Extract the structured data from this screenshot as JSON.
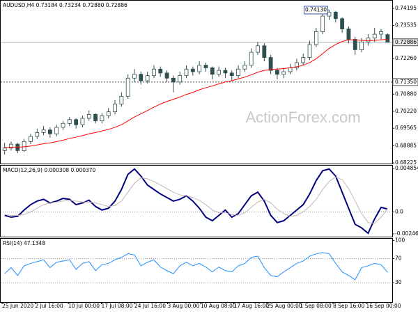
{
  "chart_data": [
    {
      "type": "candlestick",
      "title": "AUDUSD,H4  0.73184 0.73234 0.72880 0.72886",
      "watermark": "ActionForex.com",
      "candle_color": "#2f4f4f",
      "ohlc": [
        [
          0.687,
          0.69,
          0.6855,
          0.688
        ],
        [
          0.688,
          0.6905,
          0.687,
          0.6895
        ],
        [
          0.6895,
          0.69,
          0.686,
          0.687
        ],
        [
          0.687,
          0.6915,
          0.6865,
          0.6905
        ],
        [
          0.6905,
          0.6935,
          0.6895,
          0.6925
        ],
        [
          0.6925,
          0.6955,
          0.6915,
          0.694
        ],
        [
          0.694,
          0.6965,
          0.693,
          0.695
        ],
        [
          0.695,
          0.696,
          0.692,
          0.6935
        ],
        [
          0.6935,
          0.697,
          0.6925,
          0.696
        ],
        [
          0.696,
          0.6985,
          0.695,
          0.6975
        ],
        [
          0.6975,
          0.7,
          0.6965,
          0.699
        ],
        [
          0.699,
          0.6995,
          0.6955,
          0.697
        ],
        [
          0.697,
          0.7005,
          0.696,
          0.6995
        ],
        [
          0.6995,
          0.7025,
          0.6985,
          0.701
        ],
        [
          0.701,
          0.7015,
          0.6975,
          0.6985
        ],
        [
          0.6985,
          0.7015,
          0.6975,
          0.7005
        ],
        [
          0.7005,
          0.7035,
          0.6995,
          0.702
        ],
        [
          0.702,
          0.7065,
          0.701,
          0.705
        ],
        [
          0.705,
          0.7095,
          0.704,
          0.708
        ],
        [
          0.708,
          0.7165,
          0.707,
          0.715
        ],
        [
          0.715,
          0.7185,
          0.7135,
          0.7165
        ],
        [
          0.7165,
          0.7175,
          0.7125,
          0.714
        ],
        [
          0.714,
          0.7175,
          0.713,
          0.716
        ],
        [
          0.716,
          0.72,
          0.715,
          0.7185
        ],
        [
          0.7185,
          0.7195,
          0.7155,
          0.717
        ],
        [
          0.717,
          0.718,
          0.7135,
          0.715
        ],
        [
          0.715,
          0.716,
          0.7095,
          0.7135
        ],
        [
          0.7135,
          0.7175,
          0.7125,
          0.716
        ],
        [
          0.716,
          0.72,
          0.715,
          0.7185
        ],
        [
          0.7185,
          0.7195,
          0.716,
          0.7175
        ],
        [
          0.7175,
          0.7215,
          0.7165,
          0.72
        ],
        [
          0.72,
          0.721,
          0.7175,
          0.719
        ],
        [
          0.719,
          0.7195,
          0.7145,
          0.7165
        ],
        [
          0.7165,
          0.7195,
          0.7155,
          0.718
        ],
        [
          0.718,
          0.719,
          0.715,
          0.717
        ],
        [
          0.717,
          0.718,
          0.714,
          0.716
        ],
        [
          0.716,
          0.72,
          0.715,
          0.7185
        ],
        [
          0.7185,
          0.7215,
          0.7175,
          0.72
        ],
        [
          0.72,
          0.7265,
          0.719,
          0.725
        ],
        [
          0.725,
          0.729,
          0.724,
          0.7275
        ],
        [
          0.7275,
          0.7285,
          0.7215,
          0.723
        ],
        [
          0.723,
          0.724,
          0.7165,
          0.718
        ],
        [
          0.718,
          0.719,
          0.7145,
          0.7165
        ],
        [
          0.7165,
          0.719,
          0.715,
          0.7175
        ],
        [
          0.7175,
          0.7205,
          0.7165,
          0.719
        ],
        [
          0.719,
          0.7225,
          0.718,
          0.721
        ],
        [
          0.721,
          0.7245,
          0.72,
          0.723
        ],
        [
          0.723,
          0.7295,
          0.722,
          0.728
        ],
        [
          0.728,
          0.7345,
          0.727,
          0.733
        ],
        [
          0.733,
          0.7405,
          0.732,
          0.739
        ],
        [
          0.739,
          0.7413,
          0.7375,
          0.7405
        ],
        [
          0.7405,
          0.741,
          0.7365,
          0.738
        ],
        [
          0.738,
          0.7385,
          0.7325,
          0.734
        ],
        [
          0.734,
          0.735,
          0.7285,
          0.73
        ],
        [
          0.73,
          0.731,
          0.724,
          0.726
        ],
        [
          0.726,
          0.7305,
          0.725,
          0.729
        ],
        [
          0.729,
          0.732,
          0.7275,
          0.7305
        ],
        [
          0.7305,
          0.7345,
          0.729,
          0.732
        ],
        [
          0.732,
          0.734,
          0.73,
          0.733
        ],
        [
          0.73184,
          0.73234,
          0.7288,
          0.72886
        ]
      ],
      "series": [
        {
          "color": "#ff0000",
          "values": [
            0.6882,
            0.6883,
            0.6883,
            0.6885,
            0.6888,
            0.6892,
            0.6897,
            0.69,
            0.6905,
            0.691,
            0.6917,
            0.6922,
            0.6928,
            0.6935,
            0.694,
            0.6946,
            0.6952,
            0.696,
            0.697,
            0.6985,
            0.7,
            0.7012,
            0.7025,
            0.7038,
            0.705,
            0.706,
            0.7068,
            0.7077,
            0.7087,
            0.7095,
            0.7105,
            0.7113,
            0.712,
            0.7128,
            0.7135,
            0.714,
            0.7147,
            0.7154,
            0.7163,
            0.7173,
            0.718,
            0.7183,
            0.7185,
            0.7187,
            0.719,
            0.7194,
            0.72,
            0.721,
            0.7225,
            0.7245,
            0.7265,
            0.728,
            0.7292,
            0.7298,
            0.7298,
            0.7296,
            0.7295,
            0.7296,
            0.7298,
            0.73
          ]
        }
      ],
      "ylim": [
        0.682,
        0.7452
      ],
      "yticks": [
        0.74195,
        0.73535,
        {
          "value": 0.7226,
          "label": "0.72260"
        },
        {
          "value": 0.7088,
          "label": "0.70880"
        },
        {
          "value": 0.7022,
          "label": "0.70220"
        },
        0.69565,
        0.68885,
        0.68225
      ],
      "levels": [
        {
          "value": 0.72886,
          "style": "solid"
        },
        {
          "value": 0.7135,
          "label": "0.71350",
          "style": "dotted"
        }
      ],
      "high_label": {
        "value": 0.7413,
        "label": "0.74130"
      }
    },
    {
      "type": "line",
      "title": "MACD(12,26,9) 0.000308 0.000370",
      "series": [
        {
          "color": "#000080",
          "width": 2,
          "values": [
            -0.0004,
            -0.0006,
            -0.0005,
            0.0002,
            0.0008,
            0.0012,
            0.0014,
            0.001,
            0.0012,
            0.0015,
            0.0014,
            0.0008,
            0.001,
            0.0013,
            0.0006,
            0.0002,
            0.0004,
            0.0012,
            0.0025,
            0.0042,
            0.0048,
            0.004,
            0.003,
            0.0025,
            0.002,
            0.0016,
            0.0012,
            0.0014,
            0.0018,
            0.0012,
            0.0004,
            -0.0006,
            -0.001,
            -0.0004,
            0.0002,
            -0.0006,
            -0.0002,
            0.0008,
            0.0018,
            0.0022,
            0.0012,
            -0.0004,
            -0.0012,
            -0.001,
            -0.0004,
            0.0002,
            0.0008,
            0.002,
            0.0035,
            0.0046,
            0.0048,
            0.004,
            0.0022,
            0.0004,
            -0.0014,
            -0.0018,
            -0.0024,
            -0.0008,
            0.0005,
            0.000308
          ]
        },
        {
          "color": "#c8b4b4",
          "width": 1,
          "values": [
            -0.0003,
            -0.0004,
            -0.0004,
            -0.0003,
            0.0,
            0.0004,
            0.0008,
            0.001,
            0.0011,
            0.0012,
            0.0013,
            0.0012,
            0.0011,
            0.0011,
            0.001,
            0.0008,
            0.0006,
            0.0007,
            0.0012,
            0.0022,
            0.0032,
            0.0038,
            0.0037,
            0.0034,
            0.003,
            0.0026,
            0.0022,
            0.0019,
            0.0018,
            0.0016,
            0.0013,
            0.0008,
            0.0002,
            -0.0001,
            -0.0001,
            -0.0003,
            -0.0004,
            -0.0001,
            0.0005,
            0.0011,
            0.0014,
            0.001,
            0.0003,
            -0.0002,
            -0.0005,
            -0.0004,
            0.0,
            0.0006,
            0.0014,
            0.0025,
            0.0034,
            0.0039,
            0.0036,
            0.0026,
            0.0012,
            -0.0002,
            -0.0012,
            -0.0013,
            -0.0006,
            0.00037
          ]
        }
      ],
      "ylim": [
        -0.00278,
        0.005247
      ],
      "yticks": [
        0.004854,
        {
          "value": 0,
          "label": "0.0"
        },
        -0.002465
      ],
      "grid_levels": [
        0
      ]
    },
    {
      "type": "line",
      "title": "RSI(14) 47.1348",
      "series": [
        {
          "color": "#1e90ff",
          "width": 1,
          "values": [
            45,
            55,
            42,
            58,
            62,
            65,
            68,
            55,
            64,
            66,
            68,
            52,
            62,
            65,
            50,
            60,
            62,
            68,
            72,
            78,
            76,
            58,
            64,
            68,
            56,
            50,
            45,
            58,
            64,
            58,
            62,
            56,
            48,
            56,
            50,
            48,
            58,
            62,
            72,
            74,
            55,
            42,
            40,
            48,
            55,
            62,
            66,
            74,
            78,
            80,
            78,
            62,
            48,
            42,
            35,
            55,
            58,
            62,
            60,
            47.1348
          ]
        }
      ],
      "ylim": [
        -2,
        104
      ],
      "yticks": [
        100,
        70,
        30
      ],
      "grid_levels": [
        70,
        30
      ],
      "xtick_labels": [
        "25 Jun 2020",
        "2 Jul 16:00",
        "10 Jul 00:00",
        "17 Jul 08:00",
        "24 Jul 16:00",
        "3 Aug 00:00",
        "10 Aug 08:00",
        "17 Aug 16:00",
        "25 Aug 00:00",
        "1 Sep 08:00",
        "8 Sep 16:00",
        "16 Sep 00:00"
      ]
    }
  ]
}
